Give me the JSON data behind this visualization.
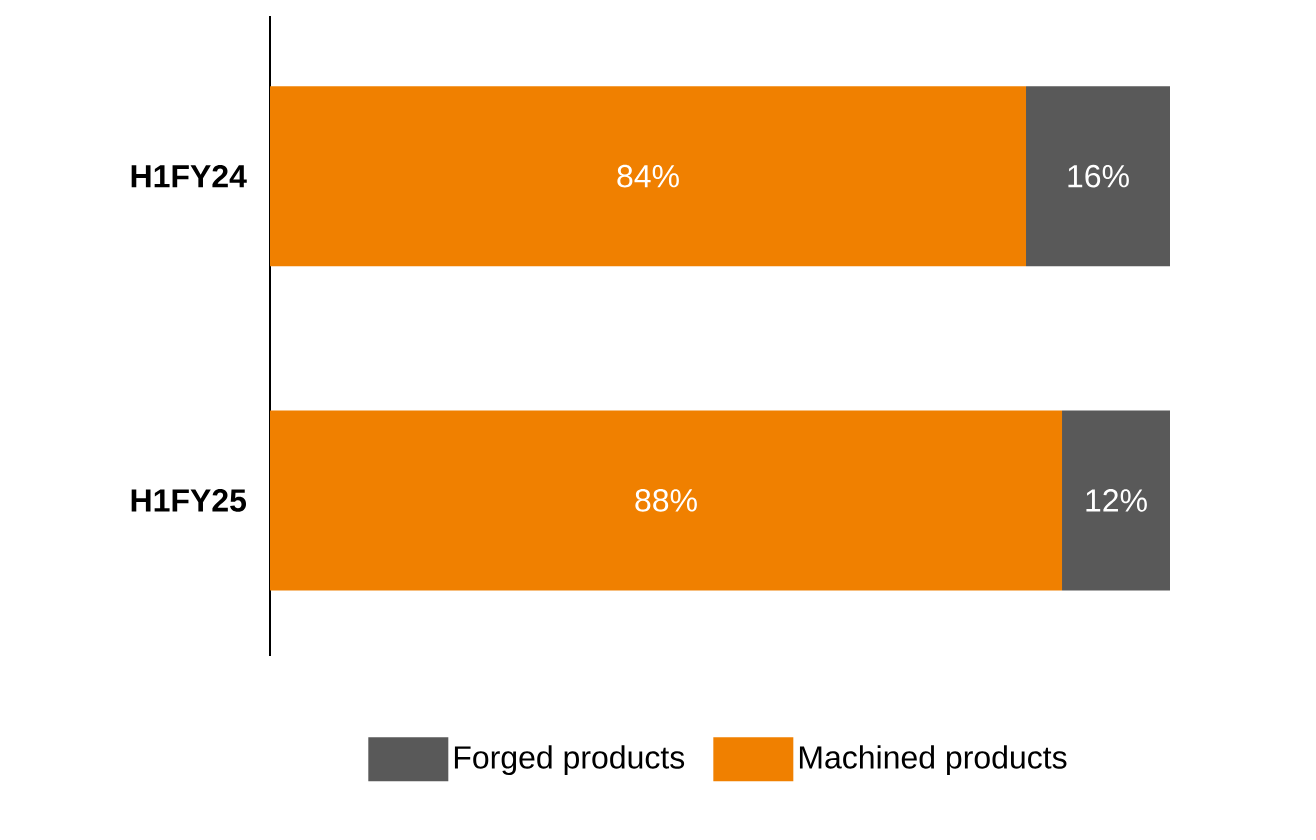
{
  "chart_data": {
    "type": "bar",
    "orientation": "horizontal",
    "stacked": true,
    "categories": [
      "H1FY24",
      "H1FY25"
    ],
    "series": [
      {
        "name": "Machined products",
        "color": "#f08000",
        "values": [
          84,
          88
        ],
        "value_labels": [
          "84%",
          "88%"
        ]
      },
      {
        "name": "Forged products",
        "color": "#595959",
        "values": [
          16,
          12
        ],
        "value_labels": [
          "16%",
          "12%"
        ]
      }
    ],
    "legend": "bottom"
  }
}
